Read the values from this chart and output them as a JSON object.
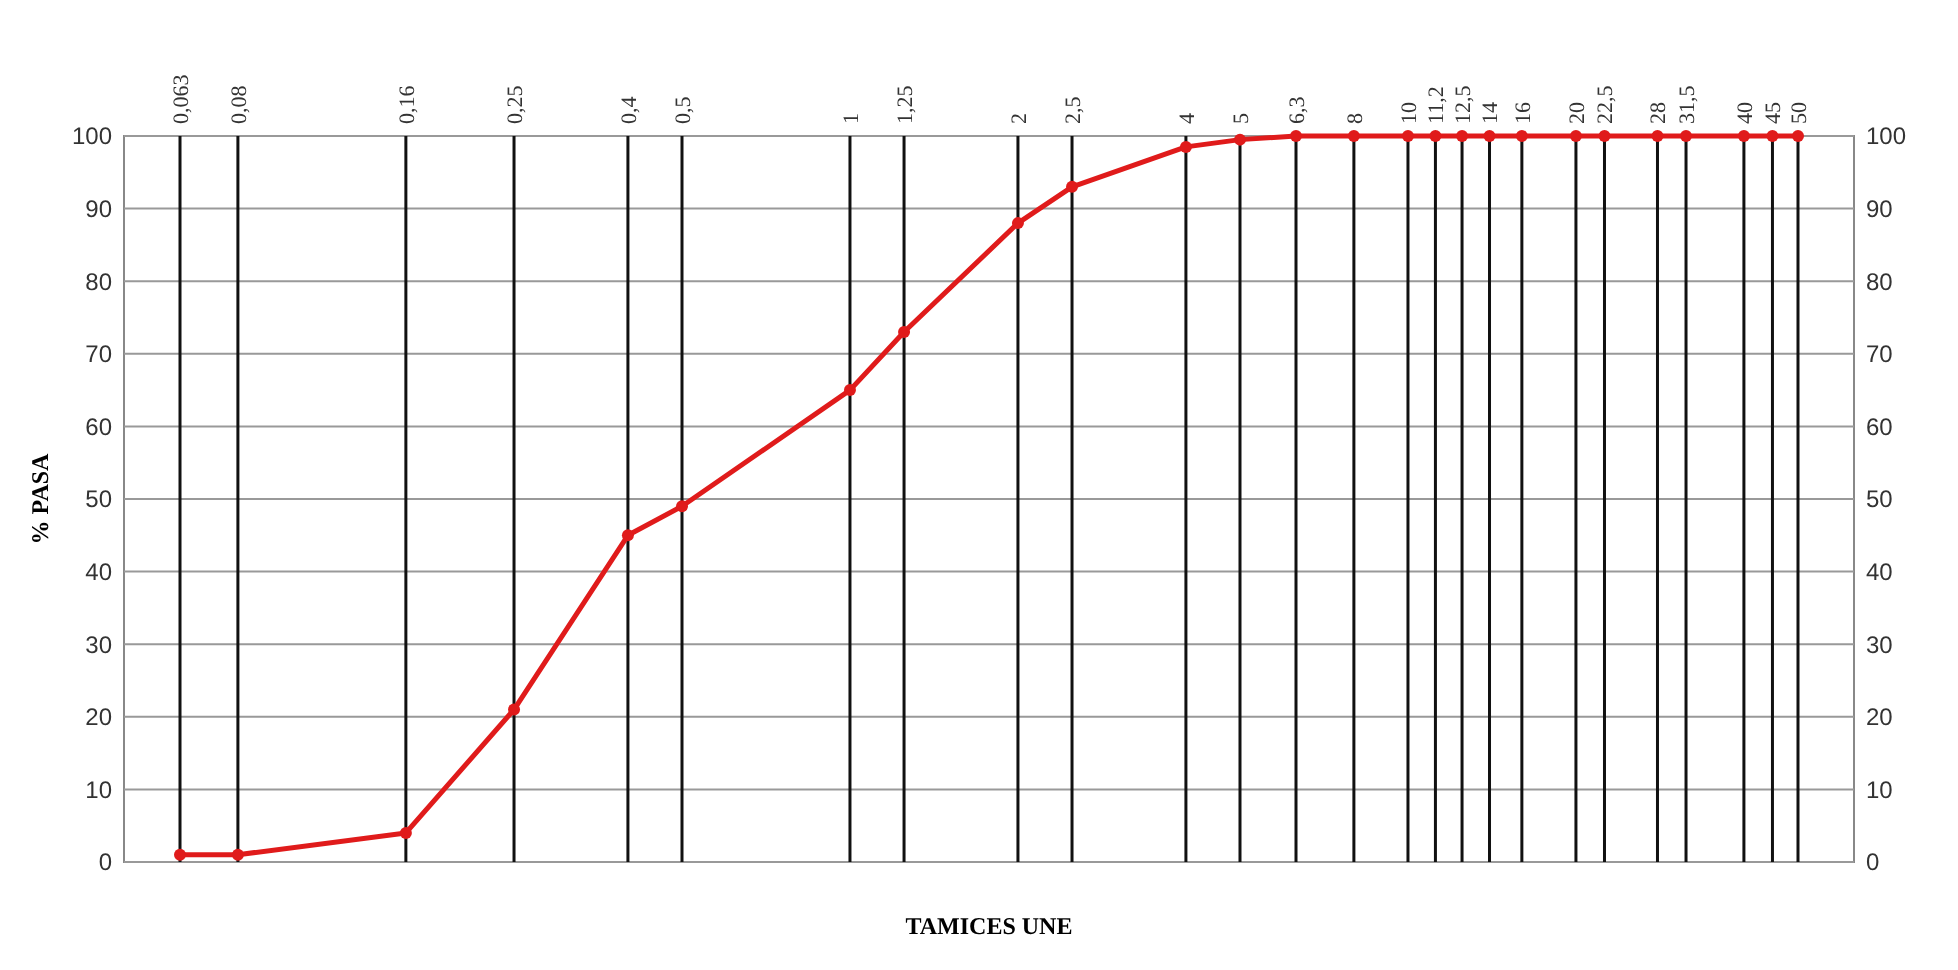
{
  "chart_data": {
    "type": "line",
    "xlabel": "TAMICES UNE",
    "ylabel": "% PASA",
    "x": [
      0.063,
      0.08,
      0.16,
      0.25,
      0.4,
      0.5,
      1,
      1.25,
      2,
      2.5,
      4,
      5,
      6.3,
      8,
      10,
      11.2,
      12.5,
      14,
      16,
      20,
      22.5,
      28,
      31.5,
      40,
      45,
      50
    ],
    "series": [
      {
        "color": "#e01b1b",
        "values": [
          1,
          1,
          4,
          21,
          45,
          49,
          65,
          73,
          88,
          93,
          98.5,
          99.5,
          100,
          100,
          100,
          100,
          100,
          100,
          100,
          100,
          100,
          100,
          100,
          100,
          100,
          100
        ]
      }
    ],
    "xlim": [
      0.05,
      63
    ],
    "log": "x",
    "xticks": [
      {
        "value": 0.063,
        "label": "0,063"
      },
      {
        "value": 0.08,
        "label": "0,08"
      },
      {
        "value": 0.16,
        "label": "0,16"
      },
      {
        "value": 0.25,
        "label": "0,25"
      },
      {
        "value": 0.4,
        "label": "0,4"
      },
      {
        "value": 0.5,
        "label": "0,5"
      },
      1,
      {
        "value": 1.25,
        "label": "1,25"
      },
      2,
      {
        "value": 2.5,
        "label": "2,5"
      },
      4,
      5,
      {
        "value": 6.3,
        "label": "6,3"
      },
      8,
      10,
      {
        "value": 11.2,
        "label": "11,2"
      },
      {
        "value": 12.5,
        "label": "12,5"
      },
      14,
      16,
      20,
      {
        "value": 22.5,
        "label": "22,5"
      },
      28,
      {
        "value": 31.5,
        "label": "31,5"
      },
      40,
      45,
      50
    ],
    "ylim": [
      0,
      100
    ],
    "yticks": [
      0,
      10,
      20,
      30,
      40,
      50,
      60,
      70,
      80,
      90,
      100
    ],
    "y2lim": [
      0,
      100
    ],
    "y2ticks": [
      0,
      10,
      20,
      30,
      40,
      50,
      60,
      70,
      80,
      90,
      100
    ],
    "grid": true,
    "marker": "circle",
    "line_style": "solid"
  }
}
